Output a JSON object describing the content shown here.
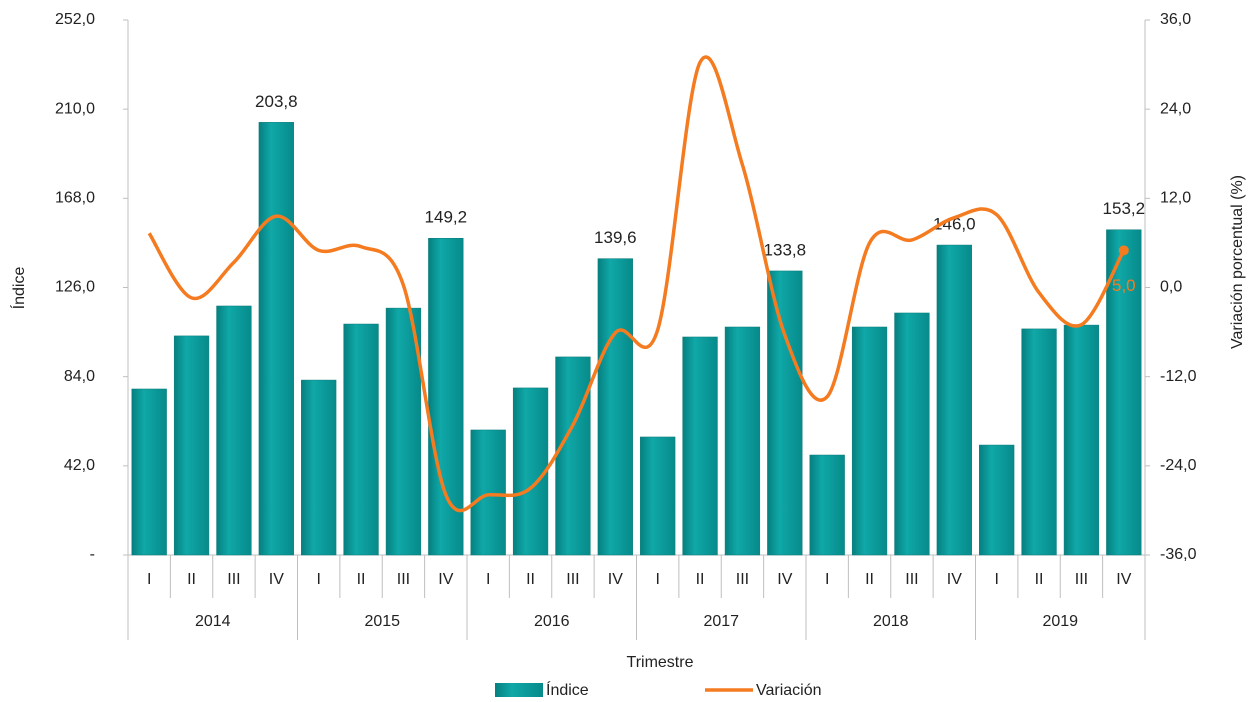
{
  "chart_data": {
    "type": "bar_line",
    "x_label": "Trimestre",
    "y_label": "Índice",
    "y2_label": "Variación porcentual (%)",
    "categories": [
      "I",
      "II",
      "III",
      "IV",
      "I",
      "II",
      "III",
      "IV",
      "I",
      "II",
      "III",
      "IV",
      "I",
      "II",
      "III",
      "IV",
      "I",
      "II",
      "III",
      "IV",
      "I",
      "II",
      "III",
      "IV"
    ],
    "groups": [
      "2014",
      "2015",
      "2016",
      "2017",
      "2018",
      "2019"
    ],
    "series": [
      {
        "name": "Índice",
        "type": "bar",
        "color": "#0a9e9e",
        "values": [
          78.2,
          103.2,
          117.3,
          203.8,
          82.4,
          108.8,
          116.3,
          149.2,
          58.9,
          78.7,
          93.3,
          139.6,
          55.6,
          102.7,
          107.4,
          133.8,
          47.1,
          107.4,
          114.0,
          146.0,
          51.8,
          106.5,
          108.3,
          153.2
        ],
        "value_labels": [
          null,
          null,
          null,
          "203,8",
          null,
          null,
          null,
          "149,2",
          null,
          null,
          null,
          "139,6",
          null,
          null,
          null,
          "133,8",
          null,
          null,
          null,
          "146,0",
          null,
          null,
          null,
          "153,2"
        ]
      },
      {
        "name": "Variación",
        "type": "line",
        "axis": "y2",
        "color": "#f47b20",
        "values": [
          7.3,
          -1.4,
          3.4,
          9.6,
          5.0,
          5.5,
          0.3,
          -27.9,
          -27.9,
          -27.0,
          -18.5,
          -6.1,
          -5.7,
          30.3,
          16.5,
          -6.4,
          -14.7,
          6.0,
          6.4,
          9.4,
          9.8,
          -0.7,
          -5.0,
          5.0
        ],
        "value_labels": [
          null,
          null,
          null,
          null,
          null,
          null,
          null,
          null,
          null,
          null,
          null,
          null,
          null,
          null,
          null,
          null,
          null,
          null,
          null,
          null,
          null,
          null,
          null,
          "5,0"
        ]
      }
    ],
    "ylim": [
      0,
      252
    ],
    "yticks": [
      {
        "value": 0,
        "label": "-"
      },
      {
        "value": 42,
        "label": "42,0"
      },
      {
        "value": 84,
        "label": "84,0"
      },
      {
        "value": 126,
        "label": "126,0"
      },
      {
        "value": 168,
        "label": "168,0"
      },
      {
        "value": 210,
        "label": "210,0"
      },
      {
        "value": 252,
        "label": "252,0"
      }
    ],
    "y2lim": [
      -36,
      36
    ],
    "y2ticks": [
      {
        "value": -36,
        "label": "-36,0"
      },
      {
        "value": -24,
        "label": "-24,0"
      },
      {
        "value": -12,
        "label": "-12,0"
      },
      {
        "value": 0,
        "label": "0,0"
      },
      {
        "value": 12,
        "label": "12,0"
      },
      {
        "value": 24,
        "label": "24,0"
      },
      {
        "value": 36,
        "label": "36,0"
      }
    ],
    "grid": false,
    "legend": "bottom"
  }
}
